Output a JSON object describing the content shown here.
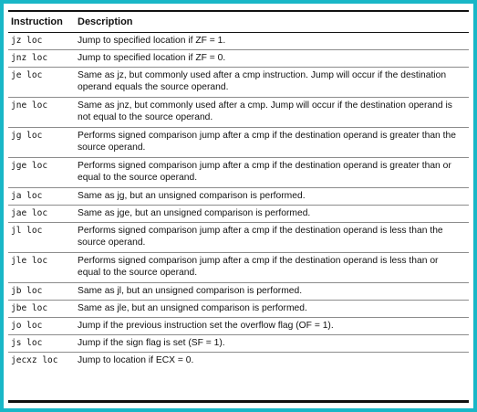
{
  "table": {
    "headers": {
      "instruction": "Instruction",
      "description": "Description"
    },
    "rows": [
      {
        "instruction": "jz loc",
        "description": "Jump to specified location if ZF = 1."
      },
      {
        "instruction": "jnz loc",
        "description": "Jump to specified location if ZF = 0."
      },
      {
        "instruction": "je loc",
        "description": "Same as jz, but commonly used after a cmp instruction. Jump will occur if the destination operand equals the source operand."
      },
      {
        "instruction": "jne loc",
        "description": "Same as jnz, but commonly used after a cmp. Jump will occur if the destination operand is not equal to the source operand."
      },
      {
        "instruction": "jg loc",
        "description": "Performs signed comparison jump after a cmp if the destination operand is greater than the source operand."
      },
      {
        "instruction": "jge loc",
        "description": "Performs signed comparison jump after a cmp if the destination operand is greater than or equal to the source operand."
      },
      {
        "instruction": "ja loc",
        "description": "Same as jg, but an unsigned comparison is performed."
      },
      {
        "instruction": "jae loc",
        "description": "Same as jge, but an unsigned comparison is performed."
      },
      {
        "instruction": "jl loc",
        "description": "Performs signed comparison jump after a cmp if the destination operand is less than the source operand."
      },
      {
        "instruction": "jle loc",
        "description": "Performs signed comparison jump after a cmp if the destination operand is less than or equal to the source operand."
      },
      {
        "instruction": "jb loc",
        "description": "Same as jl, but an unsigned comparison is performed."
      },
      {
        "instruction": "jbe loc",
        "description": "Same as jle, but an unsigned comparison is performed."
      },
      {
        "instruction": "jo loc",
        "description": "Jump if the previous instruction set the overflow flag (OF = 1)."
      },
      {
        "instruction": "js loc",
        "description": "Jump if the sign flag is set (SF = 1)."
      },
      {
        "instruction": "jecxz loc",
        "description": "Jump to location if ECX = 0."
      }
    ]
  }
}
